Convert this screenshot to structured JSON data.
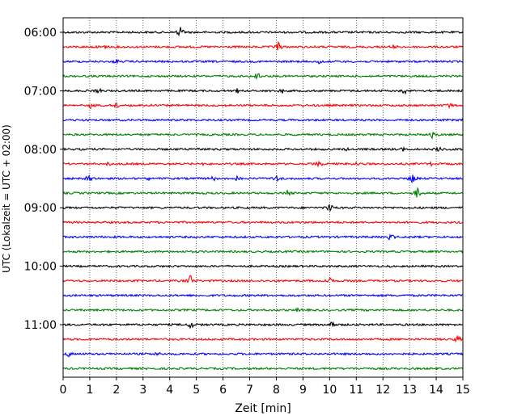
{
  "chart_data": {
    "type": "line",
    "xlabel": "Zeit  [min]",
    "ylabel": "UTC (Lokalzeit = UTC + 02:00)",
    "xlim": [
      0,
      15
    ],
    "x_ticks": [
      0,
      1,
      2,
      3,
      4,
      5,
      6,
      7,
      8,
      9,
      10,
      11,
      12,
      13,
      14,
      15
    ],
    "y_tick_labels": [
      "06:00",
      "07:00",
      "08:00",
      "09:00",
      "10:00",
      "11:00"
    ],
    "y_tick_rows": [
      0,
      4,
      8,
      12,
      16,
      20
    ],
    "grid": "vertical-dotted",
    "trace_colors": [
      "#000000",
      "#ff0000",
      "#0000ff",
      "#008000"
    ],
    "rows": [
      {
        "start": "06:00",
        "color": "#000000",
        "events": [
          {
            "minute": 4.4,
            "amp": 9
          }
        ]
      },
      {
        "start": "06:15",
        "color": "#ff0000",
        "events": [
          {
            "minute": 8.1,
            "amp": 8
          },
          {
            "minute": 1.5,
            "amp": 4
          },
          {
            "minute": 12.4,
            "amp": 4
          }
        ]
      },
      {
        "start": "06:30",
        "color": "#0000ff",
        "events": [
          {
            "minute": 2.0,
            "amp": 3
          },
          {
            "minute": 9.6,
            "amp": 4
          }
        ]
      },
      {
        "start": "06:45",
        "color": "#008000",
        "events": [
          {
            "minute": 7.3,
            "amp": 6
          }
        ]
      },
      {
        "start": "07:00",
        "color": "#000000",
        "events": [
          {
            "minute": 1.3,
            "amp": 4
          },
          {
            "minute": 6.5,
            "amp": 4
          },
          {
            "minute": 8.2,
            "amp": 4
          },
          {
            "minute": 12.8,
            "amp": 4
          }
        ]
      },
      {
        "start": "07:15",
        "color": "#ff0000",
        "events": [
          {
            "minute": 1.0,
            "amp": 5
          },
          {
            "minute": 2.0,
            "amp": 5
          },
          {
            "minute": 3.4,
            "amp": 3
          },
          {
            "minute": 14.5,
            "amp": 4
          }
        ]
      },
      {
        "start": "07:30",
        "color": "#0000ff",
        "events": []
      },
      {
        "start": "07:45",
        "color": "#008000",
        "events": [
          {
            "minute": 13.9,
            "amp": 7
          }
        ]
      },
      {
        "start": "08:00",
        "color": "#000000",
        "events": [
          {
            "minute": 5.1,
            "amp": 3
          },
          {
            "minute": 10.7,
            "amp": 4
          },
          {
            "minute": 12.8,
            "amp": 4
          },
          {
            "minute": 14.1,
            "amp": 6
          }
        ]
      },
      {
        "start": "08:15",
        "color": "#ff0000",
        "events": [
          {
            "minute": 1.7,
            "amp": 4
          },
          {
            "minute": 5.2,
            "amp": 4
          },
          {
            "minute": 9.6,
            "amp": 5
          },
          {
            "minute": 11.0,
            "amp": 5
          },
          {
            "minute": 13.8,
            "amp": 4
          }
        ]
      },
      {
        "start": "08:30",
        "color": "#0000ff",
        "events": [
          {
            "minute": 1.0,
            "amp": 6
          },
          {
            "minute": 3.2,
            "amp": 4
          },
          {
            "minute": 5.6,
            "amp": 5
          },
          {
            "minute": 6.5,
            "amp": 5
          },
          {
            "minute": 8.0,
            "amp": 5
          },
          {
            "minute": 13.1,
            "amp": 7
          }
        ]
      },
      {
        "start": "08:45",
        "color": "#008000",
        "events": [
          {
            "minute": 8.4,
            "amp": 4
          },
          {
            "minute": 13.3,
            "amp": 10
          }
        ]
      },
      {
        "start": "09:00",
        "color": "#000000",
        "events": [
          {
            "minute": 10.0,
            "amp": 7
          }
        ]
      },
      {
        "start": "09:15",
        "color": "#ff0000",
        "events": []
      },
      {
        "start": "09:30",
        "color": "#0000ff",
        "events": [
          {
            "minute": 12.3,
            "amp": 5
          }
        ]
      },
      {
        "start": "09:45",
        "color": "#008000",
        "events": []
      },
      {
        "start": "10:00",
        "color": "#000000",
        "events": [
          {
            "minute": 12.3,
            "amp": 3
          }
        ]
      },
      {
        "start": "10:15",
        "color": "#ff0000",
        "events": [
          {
            "minute": 4.8,
            "amp": 9
          },
          {
            "minute": 10.0,
            "amp": 7
          }
        ]
      },
      {
        "start": "10:30",
        "color": "#0000ff",
        "events": []
      },
      {
        "start": "10:45",
        "color": "#008000",
        "events": [
          {
            "minute": 8.8,
            "amp": 4
          }
        ]
      },
      {
        "start": "11:00",
        "color": "#000000",
        "events": [
          {
            "minute": 4.8,
            "amp": 7
          },
          {
            "minute": 10.1,
            "amp": 7
          }
        ]
      },
      {
        "start": "11:15",
        "color": "#ff0000",
        "events": [
          {
            "minute": 14.8,
            "amp": 5
          }
        ]
      },
      {
        "start": "11:30",
        "color": "#0000ff",
        "events": [
          {
            "minute": 0.2,
            "amp": 4
          },
          {
            "minute": 3.5,
            "amp": 3
          }
        ]
      },
      {
        "start": "11:45",
        "color": "#008000",
        "events": []
      }
    ]
  }
}
